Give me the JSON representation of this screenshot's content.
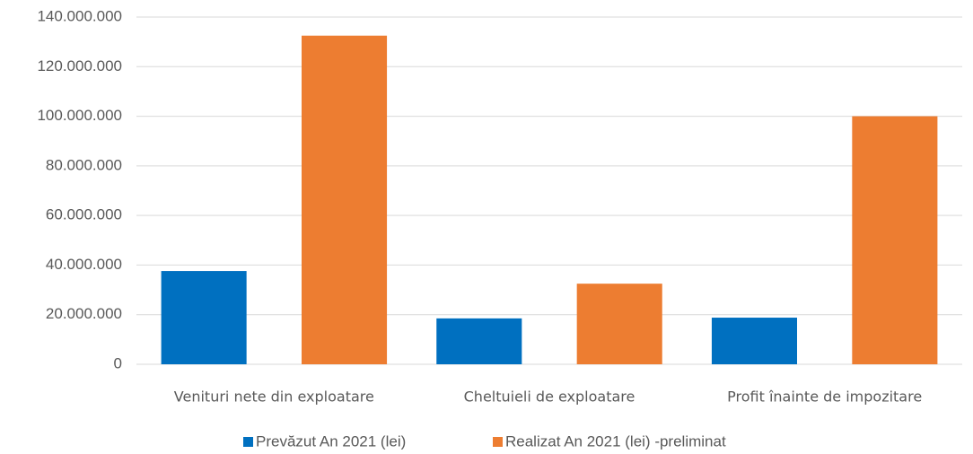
{
  "chart_data": {
    "type": "bar",
    "categories": [
      "Venituri nete din exploatare",
      "Cheltuieli de exploatare",
      "Profit înainte de impozitare"
    ],
    "series": [
      {
        "name": "Prevăzut An 2021 (lei)",
        "color": "#0070c0",
        "values": [
          37600000,
          18500000,
          18800000
        ]
      },
      {
        "name": "Realizat An 2021 (lei) -preliminat",
        "color": "#ed7d31",
        "values": [
          132500000,
          32500000,
          100000000
        ]
      }
    ],
    "ylim": [
      0,
      140000000
    ],
    "yticks": [
      0,
      {
        "value": 20000000,
        "label": "20.000.000"
      },
      {
        "value": 40000000,
        "label": "40.000.000"
      },
      {
        "value": 60000000,
        "label": "60.000.000"
      },
      {
        "value": 80000000,
        "label": "80.000.000"
      },
      {
        "value": 100000000,
        "label": "100.000.000"
      },
      {
        "value": 120000000,
        "label": "120.000.000"
      },
      {
        "value": 140000000,
        "label": "140.000.000"
      }
    ],
    "grid": true,
    "legend": "bottom"
  }
}
